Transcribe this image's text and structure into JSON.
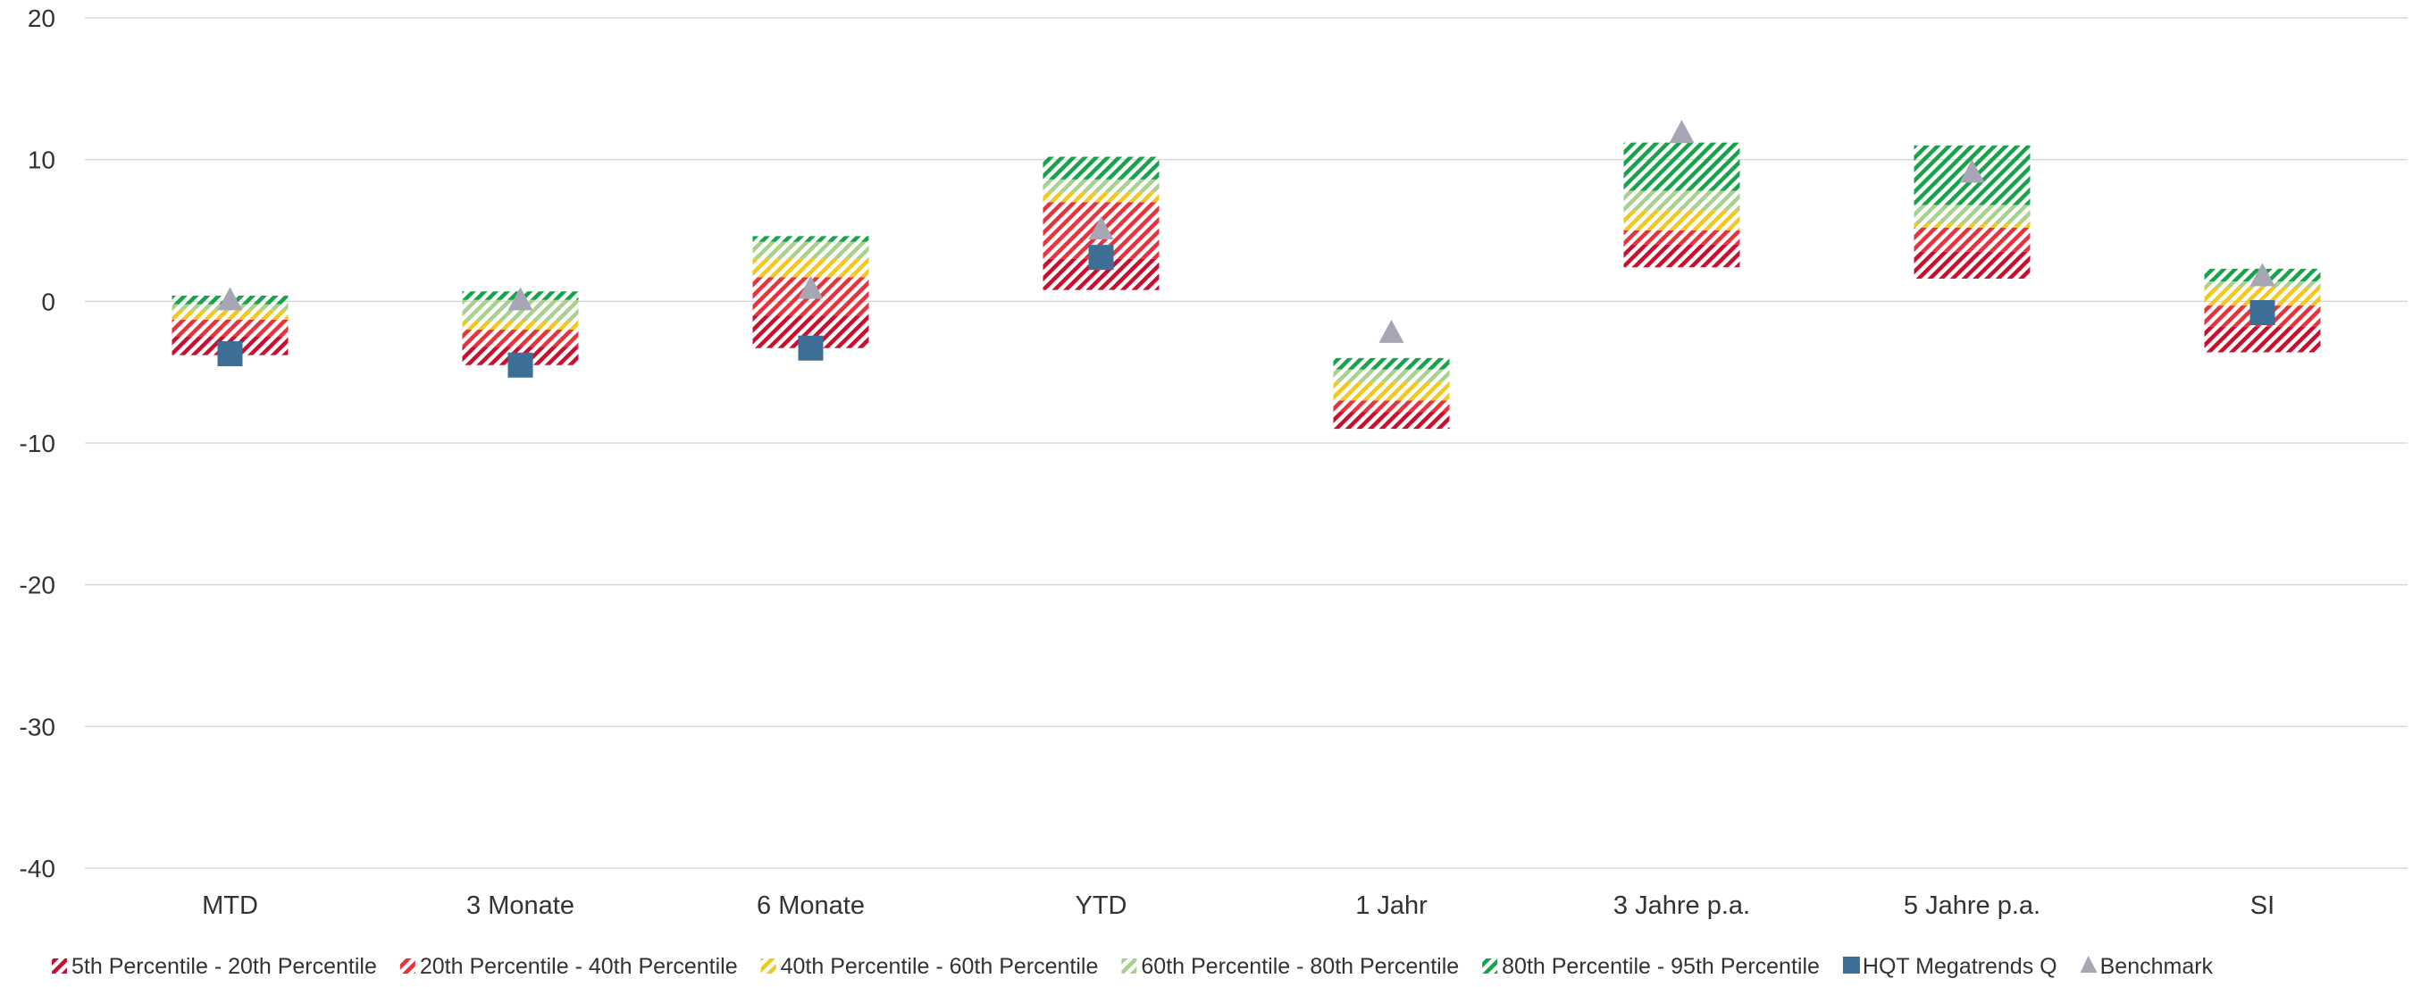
{
  "chart_data": {
    "type": "bar",
    "ylim": [
      -40,
      20
    ],
    "yticks": [
      20,
      10,
      0,
      -10,
      -20,
      -30,
      -40
    ],
    "grid": true,
    "legend_position": "bottom",
    "categories": [
      "MTD",
      "3 Monate",
      "6 Monate",
      "YTD",
      "1 Jahr",
      "3 Jahre p.a.",
      "5 Jahre p.a.",
      "SI"
    ],
    "bands": [
      {
        "name": "5th Percentile - 20th Percentile",
        "color": "#c8102e",
        "ranges": [
          [
            -3.8,
            -2.5
          ],
          [
            -4.5,
            -3.2
          ],
          [
            -3.3,
            -1.0
          ],
          [
            0.8,
            3.0
          ],
          [
            -9.0,
            -7.8
          ],
          [
            2.4,
            4.0
          ],
          [
            1.6,
            3.5
          ],
          [
            -3.6,
            -1.8
          ]
        ]
      },
      {
        "name": "20th Percentile - 40th Percentile",
        "color": "#e8323c",
        "ranges": [
          [
            -2.5,
            -1.3
          ],
          [
            -3.2,
            -2.0
          ],
          [
            -1.0,
            1.7
          ],
          [
            3.0,
            7.0
          ],
          [
            -7.8,
            -7.0
          ],
          [
            4.0,
            5.0
          ],
          [
            3.5,
            5.2
          ],
          [
            -1.8,
            -0.3
          ]
        ]
      },
      {
        "name": "40th Percentile - 60th Percentile",
        "color": "#f2c81e",
        "ranges": [
          [
            -1.3,
            -0.6
          ],
          [
            -2.0,
            -1.4
          ],
          [
            1.7,
            3.0
          ],
          [
            7.0,
            7.7
          ],
          [
            -7.0,
            -5.7
          ],
          [
            5.0,
            6.4
          ],
          [
            5.2,
            5.5
          ],
          [
            -0.3,
            1.0
          ]
        ]
      },
      {
        "name": "60th Percentile - 80th Percentile",
        "color": "#a9d18e",
        "ranges": [
          [
            -0.6,
            -0.2
          ],
          [
            -1.4,
            0.1
          ],
          [
            3.0,
            4.2
          ],
          [
            7.7,
            8.6
          ],
          [
            -5.7,
            -4.8
          ],
          [
            6.4,
            7.8
          ],
          [
            5.5,
            6.8
          ],
          [
            1.0,
            1.4
          ]
        ]
      },
      {
        "name": "80th Percentile - 95th Percentile",
        "color": "#17a34a",
        "ranges": [
          [
            -0.2,
            0.4
          ],
          [
            0.1,
            0.7
          ],
          [
            4.2,
            4.6
          ],
          [
            8.6,
            10.2
          ],
          [
            -4.8,
            -4.0
          ],
          [
            7.8,
            11.2
          ],
          [
            6.8,
            11.0
          ],
          [
            1.4,
            2.3
          ]
        ]
      }
    ],
    "series": [
      {
        "name": "HQT Megatrends Q",
        "marker": "square",
        "color": "#3c6e96",
        "values": [
          -3.7,
          -4.5,
          -3.3,
          3.1,
          null,
          null,
          null,
          -0.8
        ]
      },
      {
        "name": "Benchmark",
        "marker": "triangle",
        "color": "#a7a6b4",
        "values": [
          0.0,
          0.0,
          0.8,
          5.0,
          -2.3,
          11.8,
          9.0,
          1.7
        ]
      }
    ]
  }
}
